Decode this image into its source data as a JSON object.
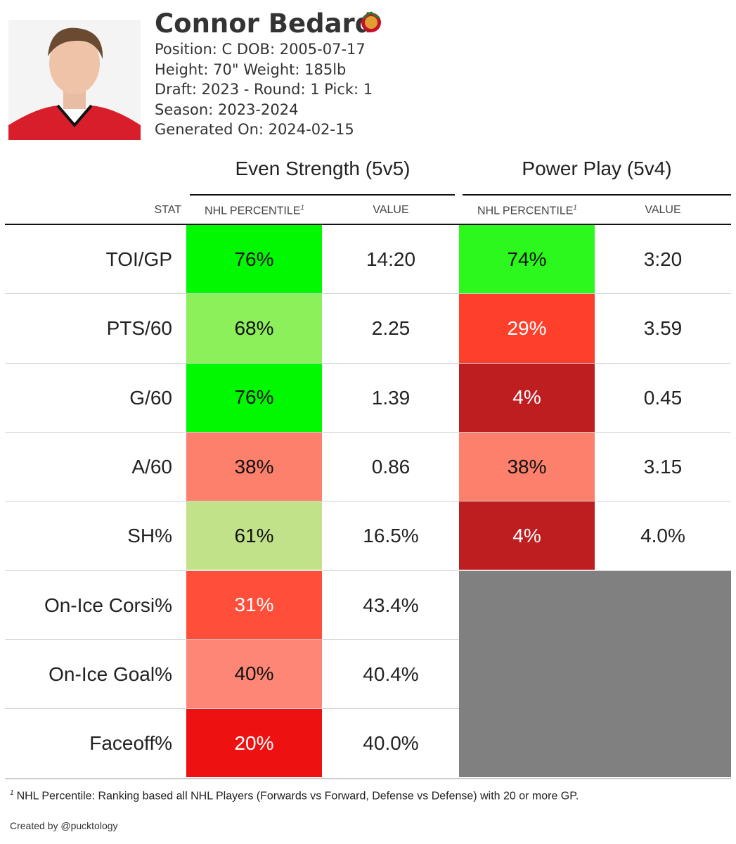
{
  "header": {
    "name": "Connor Bedard",
    "lines": [
      "Position: C DOB: 2005-07-17",
      "Height: 70\" Weight: 185lb",
      "Draft: 2023 - Round: 1 Pick: 1",
      "Season: 2023-2024",
      "Generated On: 2024-02-15"
    ]
  },
  "table": {
    "groups": [
      "Even Strength (5v5)",
      "Power Play (5v4)"
    ],
    "columns": [
      "STAT",
      "NHL PERCENTILE",
      "VALUE",
      "NHL PERCENTILE",
      "VALUE"
    ],
    "footnote_marker": "1",
    "rows": [
      {
        "stat": "TOI/GP",
        "ev": {
          "percentile": "76%",
          "color": "#00f800",
          "text_color": "#111"
        },
        "ev_value": "14:20",
        "pp": {
          "percentile": "74%",
          "color": "#2cf81e",
          "text_color": "#111"
        },
        "pp_value": "3:20"
      },
      {
        "stat": "PTS/60",
        "ev": {
          "percentile": "68%",
          "color": "#8cf05a",
          "text_color": "#111"
        },
        "ev_value": "2.25",
        "pp": {
          "percentile": "29%",
          "color": "#fe3f2b",
          "text_color": "#fff"
        },
        "pp_value": "3.59"
      },
      {
        "stat": "G/60",
        "ev": {
          "percentile": "76%",
          "color": "#00f800",
          "text_color": "#111"
        },
        "ev_value": "1.39",
        "pp": {
          "percentile": "4%",
          "color": "#bf1e20",
          "text_color": "#fff"
        },
        "pp_value": "0.45"
      },
      {
        "stat": "A/60",
        "ev": {
          "percentile": "38%",
          "color": "#fd806c",
          "text_color": "#111"
        },
        "ev_value": "0.86",
        "pp": {
          "percentile": "38%",
          "color": "#fd806c",
          "text_color": "#111"
        },
        "pp_value": "3.15"
      },
      {
        "stat": "SH%",
        "ev": {
          "percentile": "61%",
          "color": "#c2e28a",
          "text_color": "#111"
        },
        "ev_value": "16.5%",
        "pp": {
          "percentile": "4%",
          "color": "#bf1e20",
          "text_color": "#fff"
        },
        "pp_value": "4.0%"
      },
      {
        "stat": "On-Ice Corsi%",
        "ev": {
          "percentile": "31%",
          "color": "#ff4f3a",
          "text_color": "#fff"
        },
        "ev_value": "43.4%"
      },
      {
        "stat": "On-Ice Goal%",
        "ev": {
          "percentile": "40%",
          "color": "#fe8677",
          "text_color": "#111"
        },
        "ev_value": "40.4%"
      },
      {
        "stat": "Faceoff%",
        "ev": {
          "percentile": "20%",
          "color": "#ee1111",
          "text_color": "#fff"
        },
        "ev_value": "40.0%"
      }
    ],
    "empty_color": "#808080"
  },
  "footnote": {
    "marker": "1",
    "text": "NHL Percentile: Ranking based all NHL Players (Forwards vs Forward, Defense vs Defense) with 20 or more GP."
  },
  "credit": "Created by @pucktology"
}
